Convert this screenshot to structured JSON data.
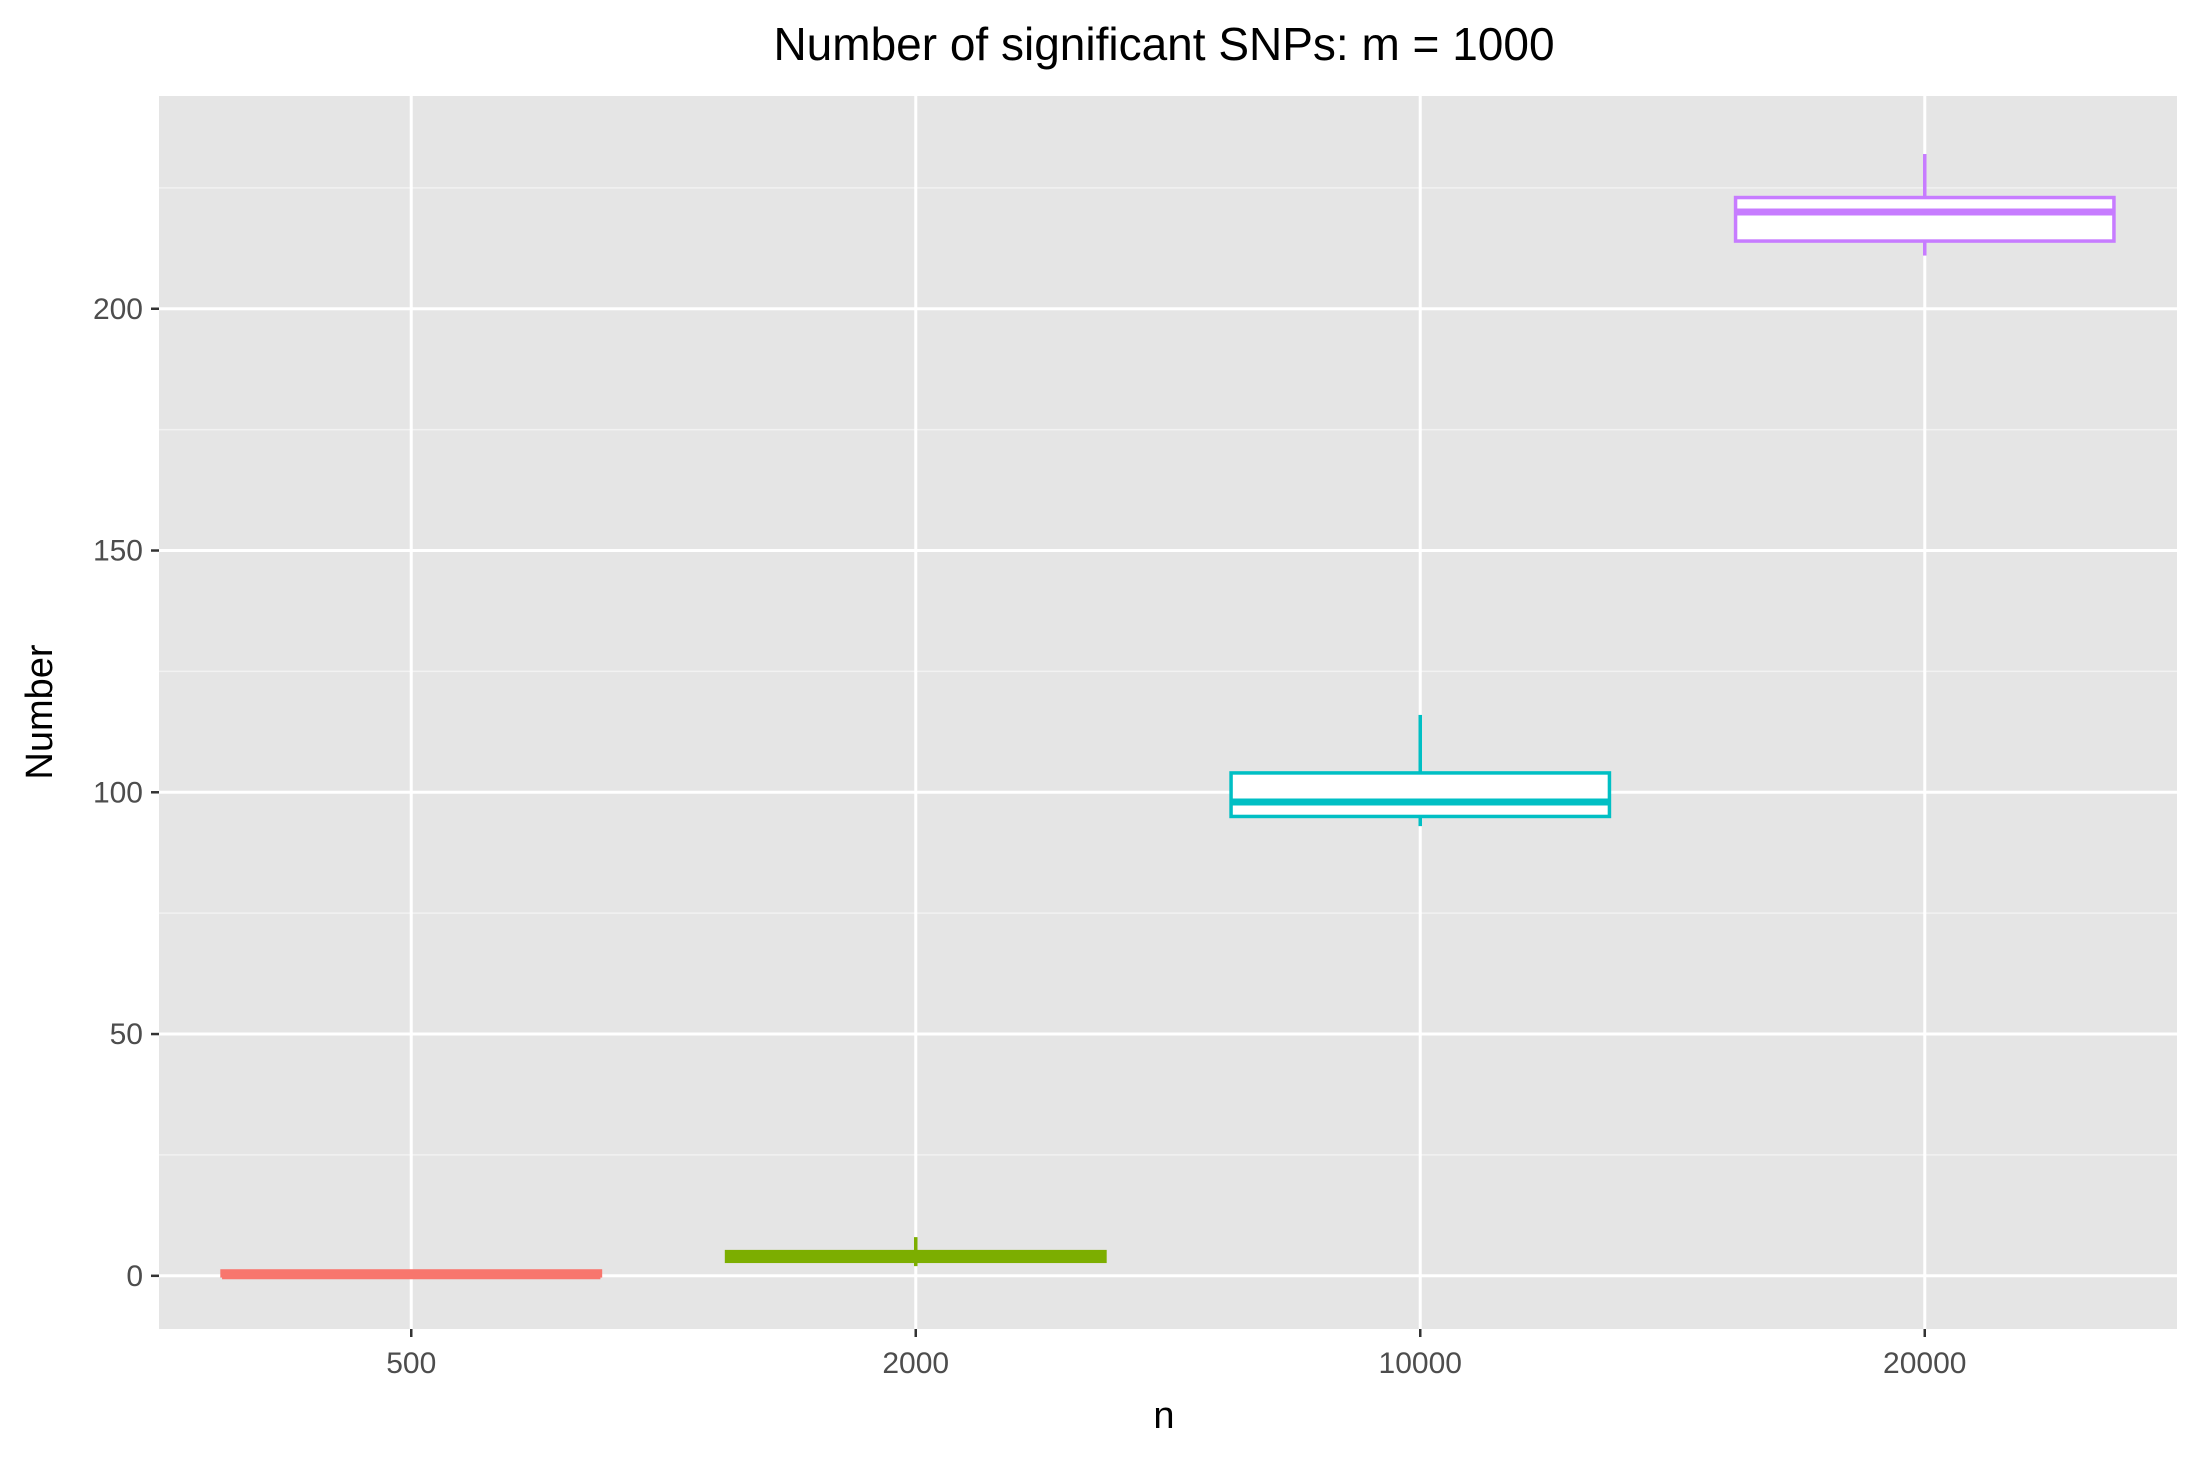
{
  "chart_data": {
    "type": "boxplot",
    "title": "Number of significant SNPs: m = 1000",
    "xlabel": "n",
    "ylabel": "Number",
    "categories": [
      "500",
      "2000",
      "10000",
      "20000"
    ],
    "ylim": [
      -11,
      244
    ],
    "yticks": [
      0,
      50,
      100,
      150,
      200
    ],
    "grid": true,
    "legend": "none",
    "boxes": [
      {
        "category": "500",
        "color": "#F8766D",
        "whisker_low": 0,
        "q1": 0,
        "median": 0,
        "q3": 1,
        "whisker_high": 1
      },
      {
        "category": "2000",
        "color": "#7CAE00",
        "whisker_low": 2,
        "q1": 3,
        "median": 4,
        "q3": 5,
        "whisker_high": 8
      },
      {
        "category": "10000",
        "color": "#00BFC4",
        "whisker_low": 93,
        "q1": 95,
        "median": 98,
        "q3": 104,
        "whisker_high": 116
      },
      {
        "category": "20000",
        "color": "#C77CFF",
        "whisker_low": 211,
        "q1": 214,
        "median": 220,
        "q3": 223,
        "whisker_high": 232
      }
    ]
  }
}
